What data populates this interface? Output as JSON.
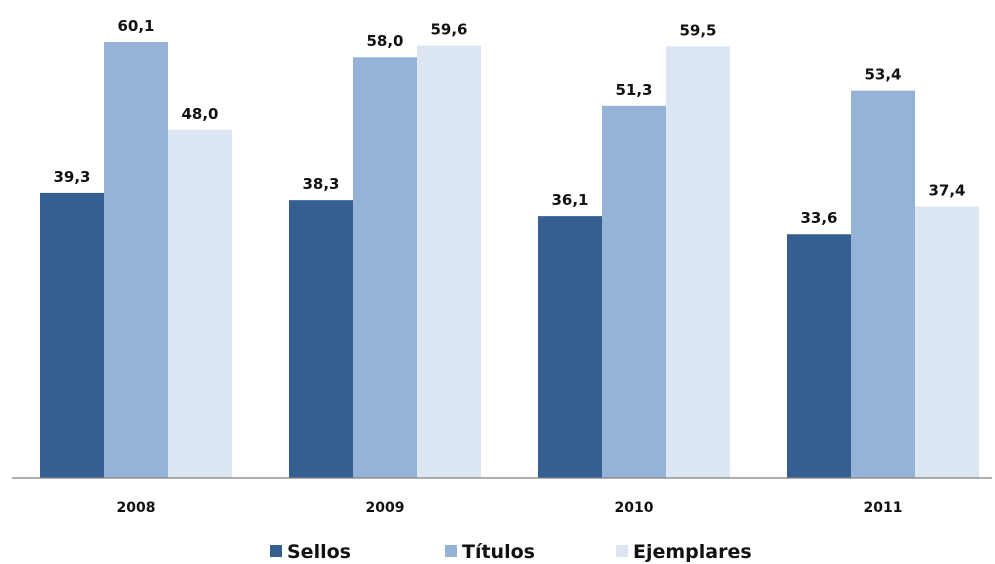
{
  "chart_data": {
    "type": "bar",
    "categories": [
      "2008",
      "2009",
      "2010",
      "2011"
    ],
    "series": [
      {
        "name": "Sellos",
        "color": "#365f91",
        "values": [
          39.3,
          38.3,
          36.1,
          33.6
        ],
        "labels": [
          "39,3",
          "38,3",
          "36,1",
          "33,6"
        ]
      },
      {
        "name": "Títulos",
        "color": "#95b3d7",
        "values": [
          60.1,
          58.0,
          51.3,
          53.4
        ],
        "labels": [
          "60,1",
          "58,0",
          "51,3",
          "53,4"
        ]
      },
      {
        "name": "Ejemplares",
        "color": "#dce6f2",
        "values": [
          48.0,
          59.6,
          59.5,
          37.4
        ],
        "labels": [
          "48,0",
          "59,6",
          "59,5",
          "37,4"
        ]
      }
    ],
    "ylim": [
      0,
      60.1
    ],
    "grid": false,
    "legend_position": "bottom"
  }
}
